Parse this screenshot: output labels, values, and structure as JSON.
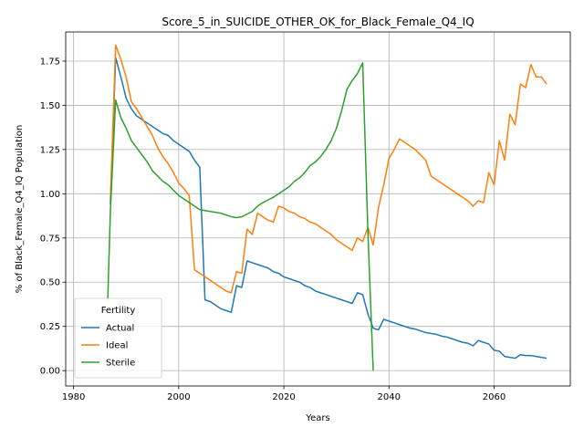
{
  "chart_data": {
    "type": "line",
    "title": "Score_5_in_SUICIDE_OTHER_OK_for_Black_Female_Q4_IQ",
    "xlabel": "Years",
    "ylabel": "% of Black_Female_Q4_IQ Population",
    "xlim": [
      1978.5,
      2074.5
    ],
    "ylim": [
      -0.087,
      1.915
    ],
    "xticks": [
      1980,
      2000,
      2020,
      2040,
      2060
    ],
    "xtick_labels": [
      "1980",
      "2000",
      "2020",
      "2040",
      "2060"
    ],
    "yticks": [
      0.0,
      0.25,
      0.5,
      0.75,
      1.0,
      1.25,
      1.5,
      1.75
    ],
    "ytick_labels": [
      "0.00",
      "0.25",
      "0.50",
      "0.75",
      "1.00",
      "1.25",
      "1.50",
      "1.75"
    ],
    "grid": true,
    "legend": {
      "title": "Fertility",
      "placement": "lower-left"
    },
    "series": [
      {
        "name": "Actual",
        "color": "#1f77b4",
        "points": [
          [
            1987,
            0.94
          ],
          [
            1988,
            1.77
          ],
          [
            1989,
            1.66
          ],
          [
            1990,
            1.54
          ],
          [
            1991,
            1.48
          ],
          [
            1992,
            1.44
          ],
          [
            1993,
            1.42
          ],
          [
            1994,
            1.4
          ],
          [
            1995,
            1.38
          ],
          [
            1996,
            1.36
          ],
          [
            1997,
            1.34
          ],
          [
            1998,
            1.33
          ],
          [
            1999,
            1.3
          ],
          [
            2000,
            1.28
          ],
          [
            2001,
            1.26
          ],
          [
            2002,
            1.24
          ],
          [
            2003,
            1.19
          ],
          [
            2004,
            1.15
          ],
          [
            2005,
            0.4
          ],
          [
            2006,
            0.39
          ],
          [
            2007,
            0.37
          ],
          [
            2008,
            0.35
          ],
          [
            2009,
            0.34
          ],
          [
            2010,
            0.33
          ],
          [
            2011,
            0.48
          ],
          [
            2012,
            0.47
          ],
          [
            2013,
            0.62
          ],
          [
            2014,
            0.61
          ],
          [
            2015,
            0.6
          ],
          [
            2016,
            0.59
          ],
          [
            2017,
            0.58
          ],
          [
            2018,
            0.56
          ],
          [
            2019,
            0.55
          ],
          [
            2020,
            0.53
          ],
          [
            2021,
            0.52
          ],
          [
            2022,
            0.51
          ],
          [
            2023,
            0.5
          ],
          [
            2024,
            0.48
          ],
          [
            2025,
            0.47
          ],
          [
            2026,
            0.45
          ],
          [
            2027,
            0.44
          ],
          [
            2028,
            0.43
          ],
          [
            2029,
            0.42
          ],
          [
            2030,
            0.41
          ],
          [
            2031,
            0.4
          ],
          [
            2032,
            0.39
          ],
          [
            2033,
            0.38
          ],
          [
            2034,
            0.44
          ],
          [
            2035,
            0.43
          ],
          [
            2036,
            0.32
          ],
          [
            2037,
            0.24
          ],
          [
            2038,
            0.23
          ],
          [
            2039,
            0.29
          ],
          [
            2040,
            0.28
          ],
          [
            2041,
            0.27
          ],
          [
            2042,
            0.26
          ],
          [
            2043,
            0.25
          ],
          [
            2044,
            0.24
          ],
          [
            2045,
            0.235
          ],
          [
            2046,
            0.225
          ],
          [
            2047,
            0.215
          ],
          [
            2048,
            0.21
          ],
          [
            2049,
            0.205
          ],
          [
            2050,
            0.195
          ],
          [
            2051,
            0.19
          ],
          [
            2052,
            0.18
          ],
          [
            2053,
            0.17
          ],
          [
            2054,
            0.16
          ],
          [
            2055,
            0.155
          ],
          [
            2056,
            0.14
          ],
          [
            2057,
            0.17
          ],
          [
            2058,
            0.16
          ],
          [
            2059,
            0.15
          ],
          [
            2060,
            0.115
          ],
          [
            2061,
            0.11
          ],
          [
            2062,
            0.08
          ],
          [
            2063,
            0.075
          ],
          [
            2064,
            0.07
          ],
          [
            2065,
            0.09
          ],
          [
            2066,
            0.085
          ],
          [
            2067,
            0.085
          ],
          [
            2068,
            0.08
          ],
          [
            2069,
            0.075
          ],
          [
            2070,
            0.07
          ]
        ]
      },
      {
        "name": "Ideal",
        "color": "#ff7f0e",
        "points": [
          [
            1987,
            0.97
          ],
          [
            1988,
            1.84
          ],
          [
            1989,
            1.76
          ],
          [
            1990,
            1.66
          ],
          [
            1991,
            1.52
          ],
          [
            1992,
            1.48
          ],
          [
            1993,
            1.43
          ],
          [
            1994,
            1.38
          ],
          [
            1995,
            1.33
          ],
          [
            1996,
            1.26
          ],
          [
            1997,
            1.21
          ],
          [
            1998,
            1.17
          ],
          [
            1999,
            1.12
          ],
          [
            2000,
            1.06
          ],
          [
            2001,
            1.03
          ],
          [
            2002,
            0.99
          ],
          [
            2003,
            0.57
          ],
          [
            2004,
            0.55
          ],
          [
            2005,
            0.53
          ],
          [
            2006,
            0.51
          ],
          [
            2007,
            0.49
          ],
          [
            2008,
            0.47
          ],
          [
            2009,
            0.45
          ],
          [
            2010,
            0.44
          ],
          [
            2011,
            0.56
          ],
          [
            2012,
            0.55
          ],
          [
            2013,
            0.8
          ],
          [
            2014,
            0.77
          ],
          [
            2015,
            0.89
          ],
          [
            2016,
            0.87
          ],
          [
            2017,
            0.85
          ],
          [
            2018,
            0.84
          ],
          [
            2019,
            0.93
          ],
          [
            2020,
            0.92
          ],
          [
            2021,
            0.9
          ],
          [
            2022,
            0.89
          ],
          [
            2023,
            0.87
          ],
          [
            2024,
            0.86
          ],
          [
            2025,
            0.84
          ],
          [
            2026,
            0.83
          ],
          [
            2027,
            0.81
          ],
          [
            2028,
            0.79
          ],
          [
            2029,
            0.77
          ],
          [
            2030,
            0.74
          ],
          [
            2031,
            0.72
          ],
          [
            2032,
            0.7
          ],
          [
            2033,
            0.68
          ],
          [
            2034,
            0.75
          ],
          [
            2035,
            0.73
          ],
          [
            2036,
            0.81
          ],
          [
            2037,
            0.71
          ],
          [
            2038,
            0.92
          ],
          [
            2039,
            1.05
          ],
          [
            2040,
            1.2
          ],
          [
            2041,
            1.25
          ],
          [
            2042,
            1.31
          ],
          [
            2043,
            1.29
          ],
          [
            2044,
            1.27
          ],
          [
            2045,
            1.25
          ],
          [
            2046,
            1.22
          ],
          [
            2047,
            1.19
          ],
          [
            2048,
            1.1
          ],
          [
            2049,
            1.08
          ],
          [
            2050,
            1.06
          ],
          [
            2051,
            1.04
          ],
          [
            2052,
            1.02
          ],
          [
            2053,
            1.0
          ],
          [
            2054,
            0.98
          ],
          [
            2055,
            0.96
          ],
          [
            2056,
            0.93
          ],
          [
            2057,
            0.96
          ],
          [
            2058,
            0.95
          ],
          [
            2059,
            1.12
          ],
          [
            2060,
            1.05
          ],
          [
            2061,
            1.3
          ],
          [
            2062,
            1.19
          ],
          [
            2063,
            1.45
          ],
          [
            2064,
            1.39
          ],
          [
            2065,
            1.62
          ],
          [
            2066,
            1.6
          ],
          [
            2067,
            1.73
          ],
          [
            2068,
            1.66
          ],
          [
            2069,
            1.66
          ],
          [
            2070,
            1.62
          ]
        ]
      },
      {
        "name": "Sterile",
        "color": "#2ca02c",
        "points": [
          [
            1986.5,
            0.4
          ],
          [
            1987,
            0.9
          ],
          [
            1988,
            1.53
          ],
          [
            1989,
            1.43
          ],
          [
            1990,
            1.37
          ],
          [
            1991,
            1.3
          ],
          [
            1992,
            1.26
          ],
          [
            1993,
            1.22
          ],
          [
            1994,
            1.18
          ],
          [
            1995,
            1.13
          ],
          [
            1996,
            1.1
          ],
          [
            1997,
            1.07
          ],
          [
            1998,
            1.05
          ],
          [
            1999,
            1.02
          ],
          [
            2000,
            0.99
          ],
          [
            2001,
            0.97
          ],
          [
            2002,
            0.95
          ],
          [
            2003,
            0.93
          ],
          [
            2004,
            0.91
          ],
          [
            2005,
            0.905
          ],
          [
            2006,
            0.9
          ],
          [
            2007,
            0.895
          ],
          [
            2008,
            0.89
          ],
          [
            2009,
            0.88
          ],
          [
            2010,
            0.87
          ],
          [
            2011,
            0.865
          ],
          [
            2012,
            0.87
          ],
          [
            2013,
            0.885
          ],
          [
            2014,
            0.9
          ],
          [
            2015,
            0.93
          ],
          [
            2016,
            0.95
          ],
          [
            2017,
            0.965
          ],
          [
            2018,
            0.98
          ],
          [
            2019,
            1.0
          ],
          [
            2020,
            1.02
          ],
          [
            2021,
            1.04
          ],
          [
            2022,
            1.07
          ],
          [
            2023,
            1.09
          ],
          [
            2024,
            1.12
          ],
          [
            2025,
            1.16
          ],
          [
            2026,
            1.18
          ],
          [
            2027,
            1.21
          ],
          [
            2028,
            1.25
          ],
          [
            2029,
            1.3
          ],
          [
            2030,
            1.37
          ],
          [
            2031,
            1.47
          ],
          [
            2032,
            1.59
          ],
          [
            2033,
            1.64
          ],
          [
            2034,
            1.68
          ],
          [
            2035,
            1.74
          ],
          [
            2036,
            0.78
          ],
          [
            2037,
            0.0
          ]
        ]
      }
    ]
  }
}
